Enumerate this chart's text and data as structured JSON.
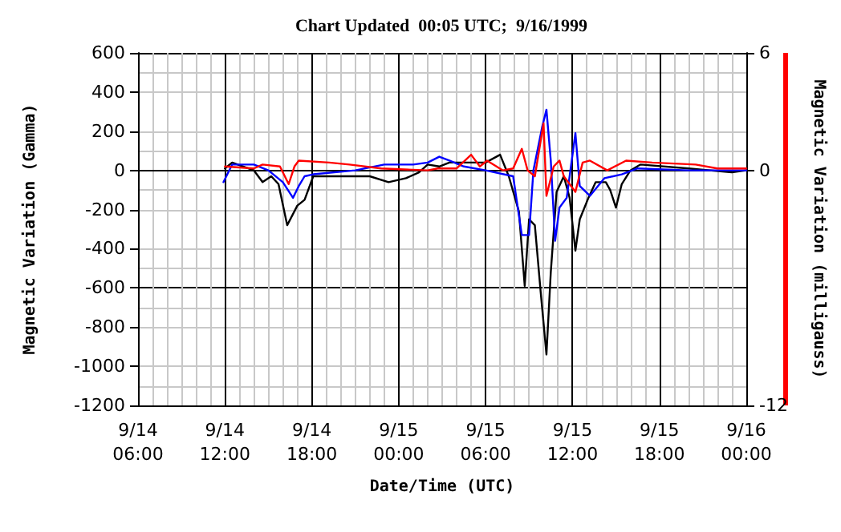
{
  "chart_data": {
    "type": "line",
    "title": "Chart Updated  00:05 UTC;  9/16/1999",
    "xlabel": "Date/Time (UTC)",
    "ylabel": "Magnetic Variation (Gamma)",
    "y2label": "Magnetic Variation (milligauss)",
    "xlim": [
      "1999-09-14T06:00",
      "1999-09-16T00:00"
    ],
    "xticks": [
      {
        "value": "1999-09-14T06:00",
        "label": "9/14\n06:00"
      },
      {
        "value": "1999-09-14T12:00",
        "label": "9/14\n12:00"
      },
      {
        "value": "1999-09-14T18:00",
        "label": "9/14\n18:00"
      },
      {
        "value": "1999-09-15T00:00",
        "label": "9/15\n00:00"
      },
      {
        "value": "1999-09-15T06:00",
        "label": "9/15\n06:00"
      },
      {
        "value": "1999-09-15T12:00",
        "label": "9/15\n12:00"
      },
      {
        "value": "1999-09-15T18:00",
        "label": "9/15\n18:00"
      },
      {
        "value": "1999-09-16T00:00",
        "label": "9/16\n00:00"
      }
    ],
    "ylim": [
      -1200,
      600
    ],
    "yticks": [
      -1200,
      -1000,
      -800,
      -600,
      -400,
      -200,
      0,
      200,
      400,
      600
    ],
    "y2lim": [
      -12,
      6
    ],
    "y2ticks": [
      -12,
      0,
      6
    ],
    "grid": true,
    "marker": "none",
    "line_style": "solid",
    "series": [
      {
        "color": "#000000",
        "x": [
          "1999-09-14T12:00",
          "1999-09-14T12:30",
          "1999-09-14T14:00",
          "1999-09-14T14:36",
          "1999-09-14T15:12",
          "1999-09-14T15:42",
          "1999-09-14T16:18",
          "1999-09-14T17:00",
          "1999-09-14T17:30",
          "1999-09-14T18:06",
          "1999-09-14T20:00",
          "1999-09-14T22:00",
          "1999-09-14T23:18",
          "1999-09-15T00:30",
          "1999-09-15T01:24",
          "1999-09-15T02:00",
          "1999-09-15T02:48",
          "1999-09-15T03:30",
          "1999-09-15T05:00",
          "1999-09-15T06:00",
          "1999-09-15T07:00",
          "1999-09-15T07:36",
          "1999-09-15T08:18",
          "1999-09-15T08:42",
          "1999-09-15T09:00",
          "1999-09-15T09:24",
          "1999-09-15T09:48",
          "1999-09-15T10:12",
          "1999-09-15T10:30",
          "1999-09-15T10:54",
          "1999-09-15T11:24",
          "1999-09-15T11:48",
          "1999-09-15T12:12",
          "1999-09-15T12:30",
          "1999-09-15T13:06",
          "1999-09-15T13:36",
          "1999-09-15T14:18",
          "1999-09-15T14:36",
          "1999-09-15T15:00",
          "1999-09-15T15:24",
          "1999-09-15T16:00",
          "1999-09-15T16:42",
          "1999-09-15T20:00",
          "1999-09-15T23:00",
          "1999-09-16T00:00"
        ],
        "values": [
          10,
          40,
          0,
          -60,
          -30,
          -70,
          -280,
          -180,
          -150,
          -30,
          -30,
          -30,
          -60,
          -40,
          -10,
          30,
          20,
          40,
          40,
          40,
          80,
          -30,
          -210,
          -590,
          -250,
          -280,
          -620,
          -940,
          -520,
          -110,
          -30,
          -140,
          -410,
          -250,
          -140,
          -60,
          -60,
          -100,
          -190,
          -70,
          0,
          30,
          10,
          -10,
          0
        ]
      },
      {
        "color": "#0000ff",
        "x": [
          "1999-09-14T11:54",
          "1999-09-14T12:30",
          "1999-09-14T14:00",
          "1999-09-14T15:00",
          "1999-09-14T16:00",
          "1999-09-14T16:42",
          "1999-09-14T17:06",
          "1999-09-14T17:30",
          "1999-09-14T18:06",
          "1999-09-14T21:00",
          "1999-09-14T23:00",
          "1999-09-15T01:00",
          "1999-09-15T02:00",
          "1999-09-15T02:48",
          "1999-09-15T03:30",
          "1999-09-15T04:30",
          "1999-09-15T06:00",
          "1999-09-15T07:54",
          "1999-09-15T08:30",
          "1999-09-15T09:00",
          "1999-09-15T09:18",
          "1999-09-15T09:54",
          "1999-09-15T10:12",
          "1999-09-15T10:30",
          "1999-09-15T10:48",
          "1999-09-15T11:06",
          "1999-09-15T11:36",
          "1999-09-15T12:12",
          "1999-09-15T12:30",
          "1999-09-15T13:12",
          "1999-09-15T14:12",
          "1999-09-15T15:24",
          "1999-09-15T16:30",
          "1999-09-15T20:00",
          "1999-09-16T00:00"
        ],
        "values": [
          -60,
          30,
          30,
          0,
          -60,
          -140,
          -80,
          -30,
          -20,
          0,
          30,
          30,
          40,
          70,
          50,
          20,
          0,
          -30,
          -330,
          -330,
          0,
          220,
          310,
          50,
          -360,
          -190,
          -140,
          190,
          -80,
          -130,
          -40,
          -20,
          10,
          0,
          0
        ]
      },
      {
        "color": "#ff0000",
        "axis": "y2",
        "x": [
          "1999-09-14T12:00",
          "1999-09-14T14:00",
          "1999-09-14T14:36",
          "1999-09-14T15:48",
          "1999-09-14T16:24",
          "1999-09-14T16:48",
          "1999-09-14T17:06",
          "1999-09-14T19:12",
          "1999-09-14T20:36",
          "1999-09-14T22:48",
          "1999-09-15T02:00",
          "1999-09-15T02:42",
          "1999-09-15T04:00",
          "1999-09-15T05:00",
          "1999-09-15T05:36",
          "1999-09-15T06:06",
          "1999-09-15T07:12",
          "1999-09-15T07:54",
          "1999-09-15T08:30",
          "1999-09-15T08:54",
          "1999-09-15T09:24",
          "1999-09-15T10:00",
          "1999-09-15T10:12",
          "1999-09-15T10:42",
          "1999-09-15T11:06",
          "1999-09-15T11:24",
          "1999-09-15T12:12",
          "1999-09-15T12:42",
          "1999-09-15T13:12",
          "1999-09-15T14:24",
          "1999-09-15T15:42",
          "1999-09-15T17:30",
          "1999-09-15T20:30",
          "1999-09-15T22:00",
          "1999-09-16T00:00"
        ],
        "values": [
          0.2,
          0.1,
          0.3,
          0.2,
          -0.7,
          0.2,
          0.5,
          0.4,
          0.3,
          0.1,
          0,
          0.1,
          0.1,
          0.8,
          0.2,
          0.5,
          0,
          0.1,
          1.1,
          0,
          -0.3,
          2.4,
          -1.3,
          0.2,
          0.5,
          -0.3,
          -1.1,
          0.4,
          0.5,
          0,
          0.5,
          0.4,
          0.3,
          0.1,
          0.1
        ]
      }
    ]
  }
}
